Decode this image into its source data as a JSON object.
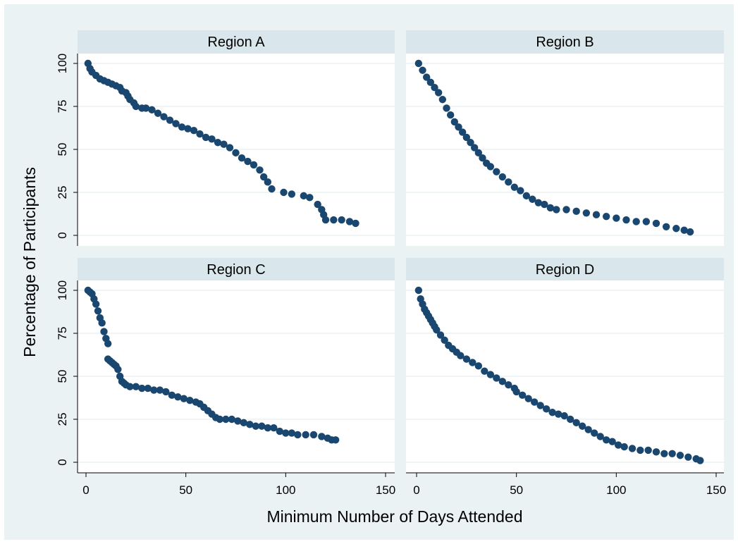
{
  "chart_data": {
    "type": "scatter",
    "layout": "2x2 facet grid",
    "ylabel": "Percentage of Participants",
    "xlabel": "Minimum Number of Days Attended",
    "xlim": [
      0,
      150
    ],
    "ylim": [
      0,
      100
    ],
    "xticks": [
      0,
      50,
      100,
      150
    ],
    "yticks": [
      0,
      25,
      50,
      75,
      100
    ],
    "grid": "horizontal",
    "marker_color": "#1a476f",
    "panels": [
      {
        "title": "Region A",
        "points": [
          [
            1,
            100
          ],
          [
            2,
            97
          ],
          [
            3,
            95
          ],
          [
            5,
            93
          ],
          [
            7,
            91
          ],
          [
            9,
            90
          ],
          [
            11,
            89
          ],
          [
            13,
            88
          ],
          [
            15,
            87
          ],
          [
            17,
            86
          ],
          [
            18,
            84
          ],
          [
            20,
            83
          ],
          [
            21,
            81
          ],
          [
            22,
            79
          ],
          [
            24,
            77
          ],
          [
            25,
            75
          ],
          [
            28,
            74
          ],
          [
            30,
            74
          ],
          [
            33,
            73
          ],
          [
            36,
            71
          ],
          [
            39,
            69
          ],
          [
            42,
            67
          ],
          [
            45,
            65
          ],
          [
            48,
            63
          ],
          [
            51,
            62
          ],
          [
            54,
            61
          ],
          [
            57,
            59
          ],
          [
            60,
            57
          ],
          [
            63,
            56
          ],
          [
            66,
            54
          ],
          [
            69,
            53
          ],
          [
            72,
            51
          ],
          [
            75,
            48
          ],
          [
            78,
            45
          ],
          [
            81,
            43
          ],
          [
            84,
            41
          ],
          [
            87,
            38
          ],
          [
            89,
            34
          ],
          [
            91,
            31
          ],
          [
            93,
            27
          ],
          [
            99,
            25
          ],
          [
            103,
            24
          ],
          [
            109,
            23
          ],
          [
            112,
            22
          ],
          [
            116,
            18
          ],
          [
            118,
            15
          ],
          [
            119,
            12
          ],
          [
            120,
            9
          ],
          [
            124,
            9
          ],
          [
            128,
            9
          ],
          [
            132,
            8
          ],
          [
            135,
            7
          ]
        ]
      },
      {
        "title": "Region B",
        "points": [
          [
            1,
            100
          ],
          [
            3,
            96
          ],
          [
            5,
            92
          ],
          [
            7,
            89
          ],
          [
            9,
            86
          ],
          [
            11,
            83
          ],
          [
            13,
            79
          ],
          [
            15,
            74
          ],
          [
            17,
            70
          ],
          [
            19,
            66
          ],
          [
            21,
            63
          ],
          [
            23,
            60
          ],
          [
            25,
            57
          ],
          [
            27,
            54
          ],
          [
            29,
            51
          ],
          [
            31,
            48
          ],
          [
            33,
            45
          ],
          [
            35,
            42
          ],
          [
            37,
            40
          ],
          [
            40,
            37
          ],
          [
            43,
            34
          ],
          [
            46,
            31
          ],
          [
            49,
            28
          ],
          [
            52,
            26
          ],
          [
            55,
            23
          ],
          [
            58,
            21
          ],
          [
            61,
            19
          ],
          [
            64,
            18
          ],
          [
            67,
            16
          ],
          [
            70,
            15
          ],
          [
            75,
            15
          ],
          [
            80,
            14
          ],
          [
            85,
            13
          ],
          [
            90,
            12
          ],
          [
            95,
            11
          ],
          [
            100,
            10
          ],
          [
            105,
            9
          ],
          [
            110,
            8
          ],
          [
            115,
            8
          ],
          [
            120,
            7
          ],
          [
            125,
            5
          ],
          [
            130,
            4
          ],
          [
            134,
            3
          ],
          [
            137,
            2
          ]
        ]
      },
      {
        "title": "Region C",
        "points": [
          [
            1,
            100
          ],
          [
            2,
            99
          ],
          [
            3,
            98
          ],
          [
            4,
            95
          ],
          [
            5,
            92
          ],
          [
            6,
            88
          ],
          [
            7,
            84
          ],
          [
            8,
            81
          ],
          [
            9,
            76
          ],
          [
            10,
            72
          ],
          [
            11,
            69
          ],
          [
            11,
            60
          ],
          [
            12,
            59
          ],
          [
            13,
            58
          ],
          [
            14,
            57
          ],
          [
            15,
            56
          ],
          [
            16,
            54
          ],
          [
            17,
            50
          ],
          [
            18,
            47
          ],
          [
            19,
            46
          ],
          [
            20,
            45
          ],
          [
            22,
            44
          ],
          [
            25,
            44
          ],
          [
            28,
            43
          ],
          [
            31,
            43
          ],
          [
            34,
            42
          ],
          [
            37,
            42
          ],
          [
            40,
            41
          ],
          [
            43,
            39
          ],
          [
            46,
            38
          ],
          [
            49,
            37
          ],
          [
            52,
            36
          ],
          [
            55,
            35
          ],
          [
            57,
            34
          ],
          [
            59,
            32
          ],
          [
            61,
            30
          ],
          [
            63,
            28
          ],
          [
            65,
            26
          ],
          [
            67,
            25
          ],
          [
            70,
            25
          ],
          [
            73,
            25
          ],
          [
            76,
            24
          ],
          [
            79,
            23
          ],
          [
            82,
            22
          ],
          [
            85,
            21
          ],
          [
            88,
            21
          ],
          [
            91,
            20
          ],
          [
            94,
            20
          ],
          [
            97,
            18
          ],
          [
            100,
            17
          ],
          [
            103,
            17
          ],
          [
            106,
            16
          ],
          [
            110,
            16
          ],
          [
            114,
            16
          ],
          [
            118,
            15
          ],
          [
            121,
            14
          ],
          [
            123,
            13
          ],
          [
            125,
            13
          ]
        ]
      },
      {
        "title": "Region D",
        "points": [
          [
            1,
            100
          ],
          [
            2,
            95
          ],
          [
            3,
            92
          ],
          [
            4,
            89
          ],
          [
            5,
            87
          ],
          [
            6,
            85
          ],
          [
            7,
            83
          ],
          [
            8,
            81
          ],
          [
            9,
            79
          ],
          [
            10,
            77
          ],
          [
            12,
            74
          ],
          [
            14,
            71
          ],
          [
            16,
            68
          ],
          [
            18,
            66
          ],
          [
            20,
            64
          ],
          [
            22,
            62
          ],
          [
            25,
            60
          ],
          [
            28,
            58
          ],
          [
            31,
            56
          ],
          [
            34,
            53
          ],
          [
            37,
            51
          ],
          [
            40,
            49
          ],
          [
            43,
            47
          ],
          [
            46,
            45
          ],
          [
            49,
            43
          ],
          [
            50,
            41
          ],
          [
            53,
            39
          ],
          [
            56,
            37
          ],
          [
            59,
            35
          ],
          [
            62,
            33
          ],
          [
            65,
            31
          ],
          [
            68,
            29
          ],
          [
            71,
            28
          ],
          [
            74,
            27
          ],
          [
            77,
            25
          ],
          [
            80,
            23
          ],
          [
            83,
            21
          ],
          [
            86,
            19
          ],
          [
            89,
            17
          ],
          [
            92,
            15
          ],
          [
            95,
            13
          ],
          [
            98,
            12
          ],
          [
            101,
            10
          ],
          [
            104,
            9
          ],
          [
            108,
            8
          ],
          [
            112,
            7
          ],
          [
            116,
            7
          ],
          [
            120,
            6
          ],
          [
            124,
            5
          ],
          [
            128,
            5
          ],
          [
            132,
            4
          ],
          [
            136,
            3
          ],
          [
            140,
            2
          ],
          [
            142,
            1
          ]
        ]
      }
    ]
  }
}
